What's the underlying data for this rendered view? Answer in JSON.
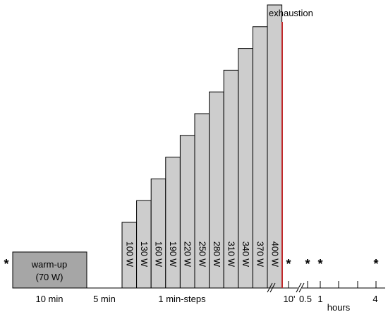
{
  "colors": {
    "block_fill": "#cdcdcd",
    "warmup_fill": "#a6a6a6",
    "outline": "#000000",
    "exhaustion_line": "#c0282a"
  },
  "warmup": {
    "label_line1": "warm-up",
    "label_line2": "(70 W)"
  },
  "phase_labels": {
    "warmup_duration": "10 min",
    "rest_duration": "5 min",
    "steps": "1 min-steps"
  },
  "steps": [
    {
      "watts": 100,
      "label": "100 W"
    },
    {
      "watts": 130,
      "label": "130 W"
    },
    {
      "watts": 160,
      "label": "160 W"
    },
    {
      "watts": 190,
      "label": "190 W"
    },
    {
      "watts": 220,
      "label": "220 W"
    },
    {
      "watts": 250,
      "label": "250 W"
    },
    {
      "watts": 280,
      "label": "280 W"
    },
    {
      "watts": 310,
      "label": "310 W"
    },
    {
      "watts": 340,
      "label": "340 W"
    },
    {
      "watts": 370,
      "label": "370 W"
    },
    {
      "watts": 400,
      "label": "400 W"
    }
  ],
  "exhaustion_label": "exhaustion",
  "recovery_ticks": {
    "t10": "10'",
    "t05": "0.5",
    "t1": "1",
    "t4": "4",
    "unit": "hours"
  },
  "sampling_marker": "*"
}
